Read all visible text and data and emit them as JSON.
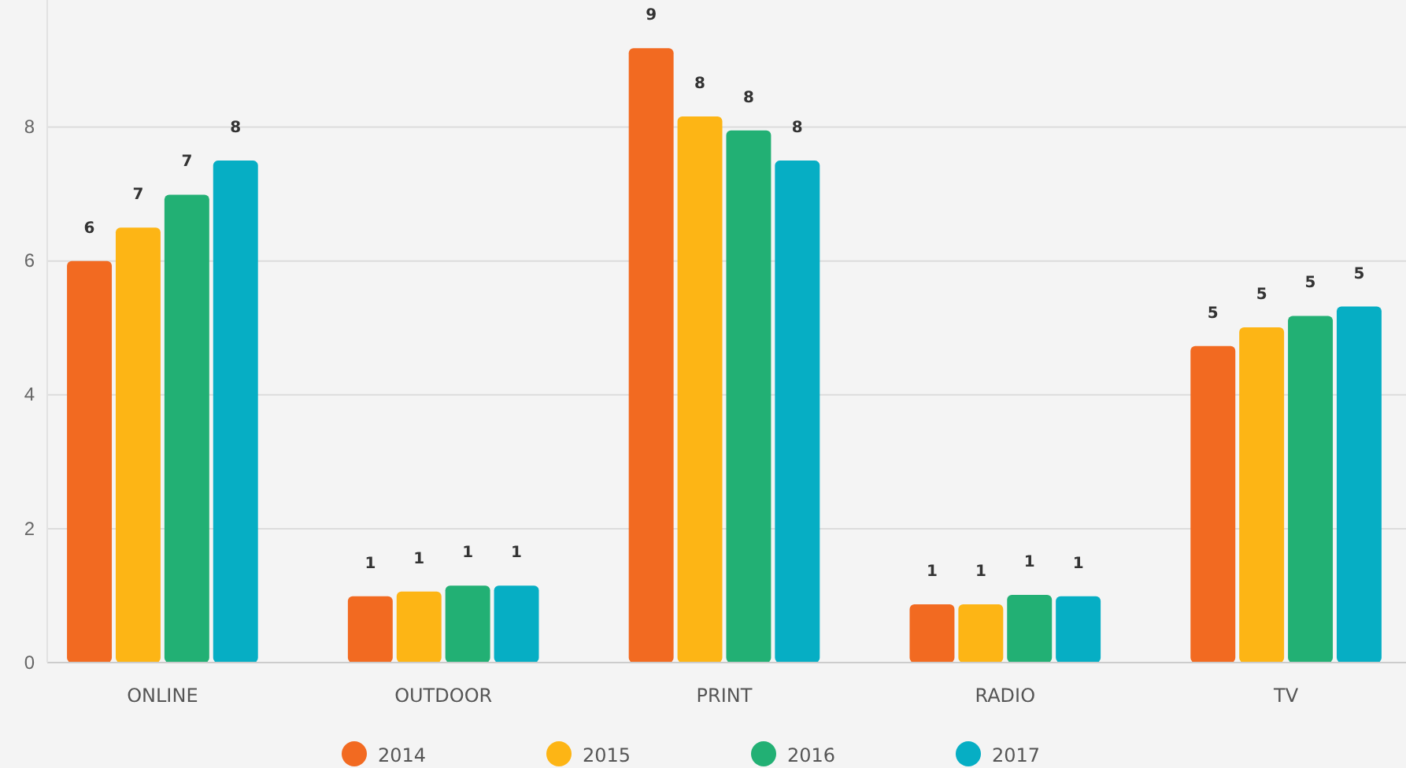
{
  "chart_data": {
    "type": "bar",
    "categories": [
      "ONLINE",
      "OUTDOOR",
      "PRINT",
      "RADIO",
      "TV"
    ],
    "series": [
      {
        "name": "2014",
        "color": "#f26a21",
        "values": [
          6.0,
          0.99,
          9.18,
          0.87,
          4.73
        ],
        "value_labels": [
          "6",
          "1",
          "9",
          "1",
          "5"
        ]
      },
      {
        "name": "2015",
        "color": "#fdb515",
        "values": [
          6.5,
          1.06,
          8.16,
          0.87,
          5.01
        ],
        "value_labels": [
          "7",
          "1",
          "8",
          "1",
          "5"
        ]
      },
      {
        "name": "2016",
        "color": "#22b074",
        "values": [
          6.99,
          1.15,
          7.95,
          1.01,
          5.18
        ],
        "value_labels": [
          "7",
          "1",
          "8",
          "1",
          "5"
        ]
      },
      {
        "name": "2017",
        "color": "#06aec4",
        "values": [
          7.5,
          1.15,
          7.5,
          0.99,
          5.32
        ],
        "value_labels": [
          "8",
          "1",
          "8",
          "1",
          "5"
        ]
      }
    ],
    "ylim": [
      0,
      9.9
    ],
    "yticks": [
      0,
      2,
      4,
      6,
      8
    ],
    "grid": "y",
    "legend": "bottom"
  }
}
